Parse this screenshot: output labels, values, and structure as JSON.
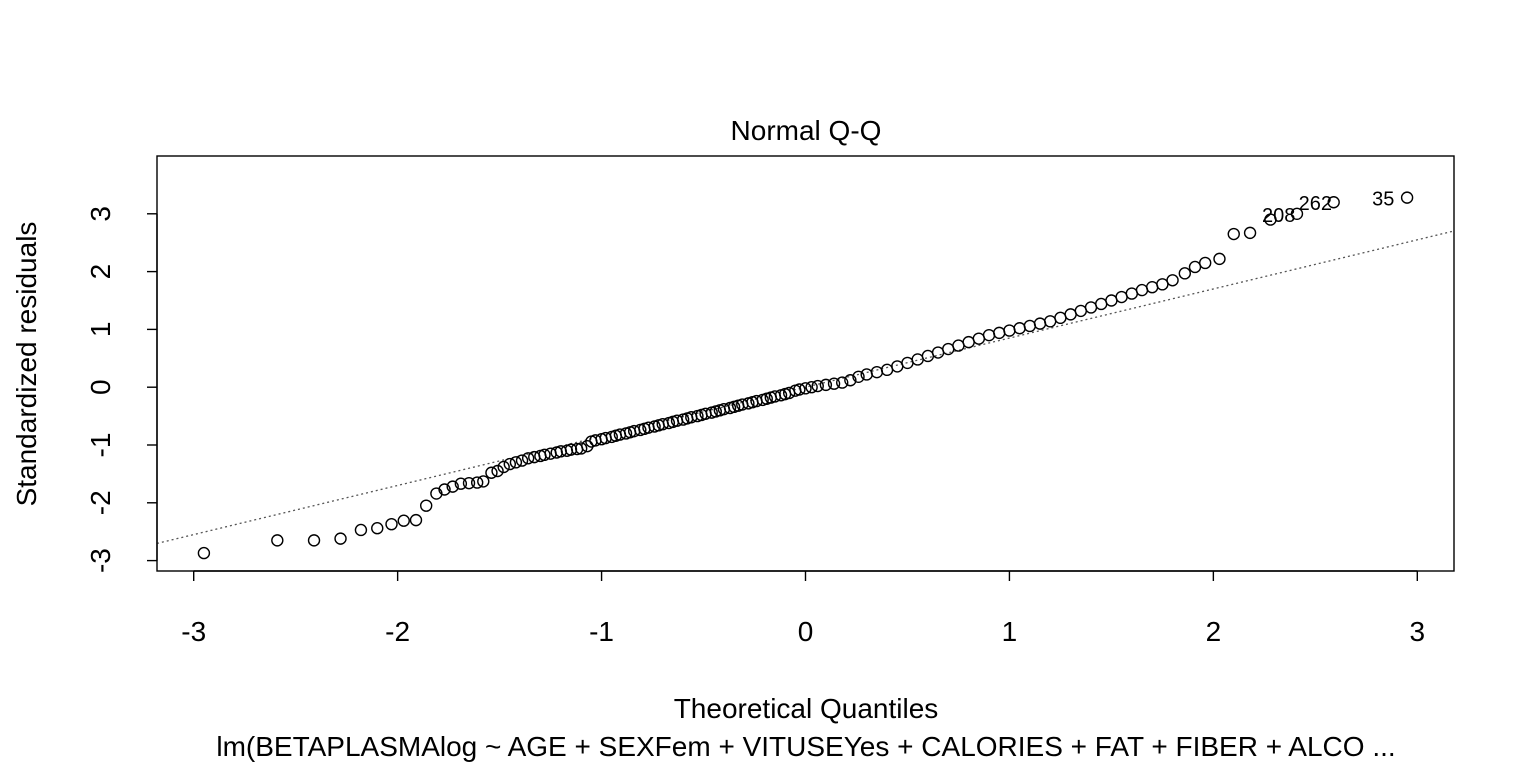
{
  "chart_data": {
    "type": "scatter",
    "title": "Normal Q-Q",
    "xlabel": "Theoretical Quantiles",
    "ylabel": "Standardized residuals",
    "subtitle": "lm(BETAPLASMAlog ~ AGE + SEXFem + VITUSEYes + CALORIES + FAT + FIBER + ALCO ...",
    "xlim": [
      -3.18,
      3.18
    ],
    "ylim": [
      -3.18,
      4.0
    ],
    "xticks": [
      -3,
      -2,
      -1,
      0,
      1,
      2,
      3
    ],
    "xtick_labels": [
      "-3",
      "-2",
      "-1",
      "0",
      "1",
      "2",
      "3"
    ],
    "yticks": [
      -3,
      -2,
      -1,
      0,
      1,
      2,
      3
    ],
    "ytick_labels": [
      "-3",
      "-2",
      "-1",
      "0",
      "1",
      "2",
      "3"
    ],
    "reference_line": {
      "slope": 0.85,
      "intercept": 0.0,
      "style": "dotted"
    },
    "point_marker": "open-circle",
    "grid": false,
    "labeled_points": [
      {
        "label": "35",
        "x": 2.95,
        "y": 3.28
      },
      {
        "label": "262",
        "x": 2.59,
        "y": 3.2
      },
      {
        "label": "208",
        "x": 2.41,
        "y": 3.0
      }
    ],
    "points": [
      [
        -2.95,
        -2.87
      ],
      [
        -2.59,
        -2.65
      ],
      [
        -2.41,
        -2.65
      ],
      [
        -2.28,
        -2.62
      ],
      [
        -2.18,
        -2.47
      ],
      [
        -2.1,
        -2.44
      ],
      [
        -2.03,
        -2.37
      ],
      [
        -1.97,
        -2.31
      ],
      [
        -1.91,
        -2.3
      ],
      [
        -1.86,
        -2.05
      ],
      [
        -1.81,
        -1.84
      ],
      [
        -1.77,
        -1.77
      ],
      [
        -1.73,
        -1.72
      ],
      [
        -1.69,
        -1.67
      ],
      [
        -1.65,
        -1.66
      ],
      [
        -1.61,
        -1.65
      ],
      [
        -1.58,
        -1.63
      ],
      [
        -1.54,
        -1.48
      ],
      [
        -1.51,
        -1.45
      ],
      [
        -1.48,
        -1.38
      ],
      [
        -1.45,
        -1.33
      ],
      [
        -1.42,
        -1.3
      ],
      [
        -1.39,
        -1.27
      ],
      [
        -1.36,
        -1.23
      ],
      [
        -1.33,
        -1.21
      ],
      [
        -1.3,
        -1.19
      ],
      [
        -1.28,
        -1.17
      ],
      [
        -1.25,
        -1.15
      ],
      [
        -1.22,
        -1.13
      ],
      [
        -1.2,
        -1.11
      ],
      [
        -1.17,
        -1.1
      ],
      [
        -1.15,
        -1.08
      ],
      [
        -1.12,
        -1.07
      ],
      [
        -1.1,
        -1.06
      ],
      [
        -1.07,
        -1.02
      ],
      [
        -1.05,
        -0.94
      ],
      [
        -1.03,
        -0.92
      ],
      [
        -1.0,
        -0.9
      ],
      [
        -0.98,
        -0.88
      ],
      [
        -0.95,
        -0.86
      ],
      [
        -0.93,
        -0.84
      ],
      [
        -0.91,
        -0.82
      ],
      [
        -0.88,
        -0.8
      ],
      [
        -0.86,
        -0.78
      ],
      [
        -0.84,
        -0.76
      ],
      [
        -0.81,
        -0.74
      ],
      [
        -0.79,
        -0.72
      ],
      [
        -0.77,
        -0.7
      ],
      [
        -0.74,
        -0.68
      ],
      [
        -0.72,
        -0.66
      ],
      [
        -0.7,
        -0.64
      ],
      [
        -0.67,
        -0.62
      ],
      [
        -0.65,
        -0.6
      ],
      [
        -0.63,
        -0.58
      ],
      [
        -0.6,
        -0.56
      ],
      [
        -0.58,
        -0.54
      ],
      [
        -0.56,
        -0.52
      ],
      [
        -0.53,
        -0.5
      ],
      [
        -0.51,
        -0.48
      ],
      [
        -0.49,
        -0.46
      ],
      [
        -0.46,
        -0.44
      ],
      [
        -0.44,
        -0.42
      ],
      [
        -0.42,
        -0.4
      ],
      [
        -0.4,
        -0.38
      ],
      [
        -0.37,
        -0.36
      ],
      [
        -0.35,
        -0.34
      ],
      [
        -0.33,
        -0.32
      ],
      [
        -0.31,
        -0.3
      ],
      [
        -0.28,
        -0.28
      ],
      [
        -0.26,
        -0.26
      ],
      [
        -0.24,
        -0.24
      ],
      [
        -0.21,
        -0.22
      ],
      [
        -0.19,
        -0.2
      ],
      [
        -0.17,
        -0.18
      ],
      [
        -0.15,
        -0.16
      ],
      [
        -0.12,
        -0.14
      ],
      [
        -0.1,
        -0.12
      ],
      [
        -0.08,
        -0.1
      ],
      [
        -0.05,
        -0.06
      ],
      [
        -0.03,
        -0.04
      ],
      [
        0.0,
        -0.02
      ],
      [
        0.03,
        0.0
      ],
      [
        0.06,
        0.02
      ],
      [
        0.1,
        0.04
      ],
      [
        0.14,
        0.06
      ],
      [
        0.18,
        0.08
      ],
      [
        0.22,
        0.12
      ],
      [
        0.26,
        0.18
      ],
      [
        0.3,
        0.22
      ],
      [
        0.35,
        0.26
      ],
      [
        0.4,
        0.3
      ],
      [
        0.45,
        0.36
      ],
      [
        0.5,
        0.42
      ],
      [
        0.55,
        0.48
      ],
      [
        0.6,
        0.54
      ],
      [
        0.65,
        0.6
      ],
      [
        0.7,
        0.66
      ],
      [
        0.75,
        0.72
      ],
      [
        0.8,
        0.78
      ],
      [
        0.85,
        0.84
      ],
      [
        0.9,
        0.9
      ],
      [
        0.95,
        0.94
      ],
      [
        1.0,
        0.98
      ],
      [
        1.05,
        1.02
      ],
      [
        1.1,
        1.06
      ],
      [
        1.15,
        1.1
      ],
      [
        1.2,
        1.14
      ],
      [
        1.25,
        1.2
      ],
      [
        1.3,
        1.26
      ],
      [
        1.35,
        1.32
      ],
      [
        1.4,
        1.38
      ],
      [
        1.45,
        1.44
      ],
      [
        1.5,
        1.5
      ],
      [
        1.55,
        1.56
      ],
      [
        1.6,
        1.62
      ],
      [
        1.65,
        1.68
      ],
      [
        1.7,
        1.73
      ],
      [
        1.75,
        1.78
      ],
      [
        1.8,
        1.85
      ],
      [
        1.86,
        1.97
      ],
      [
        1.91,
        2.08
      ],
      [
        1.96,
        2.15
      ],
      [
        2.03,
        2.22
      ],
      [
        2.1,
        2.65
      ],
      [
        2.18,
        2.67
      ],
      [
        2.28,
        2.9
      ],
      [
        2.41,
        3.0
      ],
      [
        2.59,
        3.2
      ],
      [
        2.95,
        3.28
      ]
    ]
  }
}
